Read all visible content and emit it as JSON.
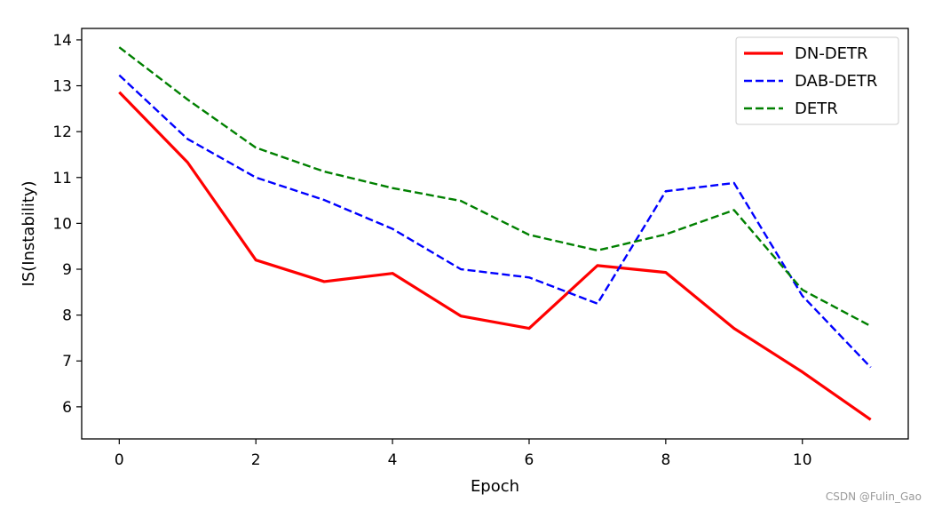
{
  "chart_data": {
    "type": "line",
    "xlabel": "Epoch",
    "ylabel": "IS(Instability)",
    "xlim": [
      -0.55,
      11.55
    ],
    "ylim": [
      5.3,
      14.25
    ],
    "x_ticks": [
      0,
      2,
      4,
      6,
      8,
      10
    ],
    "y_ticks": [
      6,
      7,
      8,
      9,
      10,
      11,
      12,
      13,
      14
    ],
    "grid": false,
    "legend_position": "top-right",
    "x": [
      0,
      1,
      2,
      3,
      4,
      5,
      6,
      7,
      8,
      9,
      10,
      11
    ],
    "series": [
      {
        "name": "DN-DETR",
        "color": "#ff0000",
        "style": "solid",
        "values": [
          12.86,
          11.33,
          9.2,
          8.73,
          8.91,
          7.98,
          7.71,
          9.08,
          8.93,
          7.71,
          6.76,
          5.72
        ]
      },
      {
        "name": "DAB-DETR",
        "color": "#0000ff",
        "style": "dashed",
        "values": [
          13.23,
          11.84,
          11.0,
          10.51,
          9.88,
          9.0,
          8.82,
          8.25,
          10.7,
          10.88,
          8.42,
          6.86
        ]
      },
      {
        "name": "DETR",
        "color": "#008000",
        "style": "dashed",
        "values": [
          13.84,
          12.7,
          11.65,
          11.13,
          10.77,
          10.49,
          9.75,
          9.41,
          9.76,
          10.29,
          8.55,
          7.76
        ]
      }
    ]
  },
  "watermark": "CSDN @Fulin_Gao"
}
